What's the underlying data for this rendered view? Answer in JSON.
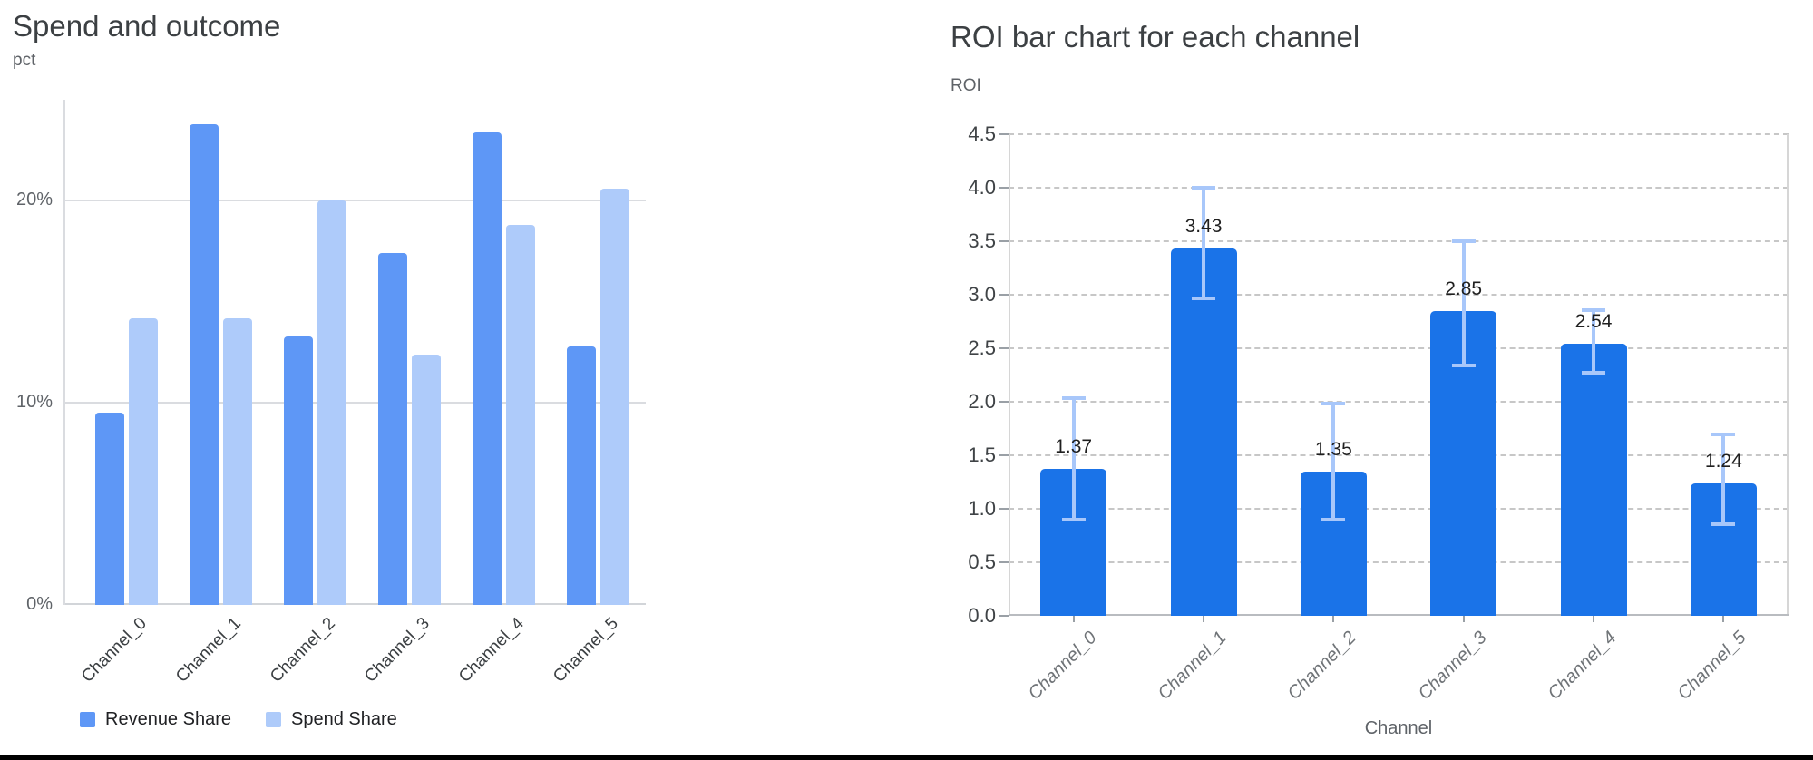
{
  "page": {
    "background": "#ffffff",
    "bottom_bar_color": "#000000"
  },
  "chart_data": [
    {
      "type": "bar",
      "title": "Spend and outcome",
      "ylabel": "pct",
      "xlabel": "",
      "categories": [
        "Channel_0",
        "Channel_1",
        "Channel_2",
        "Channel_3",
        "Channel_4",
        "Channel_5"
      ],
      "series": [
        {
          "name": "Revenue Share",
          "color": "#5e97f6",
          "values": [
            9.5,
            23.8,
            13.3,
            17.4,
            23.4,
            12.8
          ]
        },
        {
          "name": "Spend Share",
          "color": "#aecbfa",
          "values": [
            14.2,
            14.2,
            20.0,
            12.4,
            18.8,
            20.6
          ]
        }
      ],
      "y_ticks": [
        {
          "value": 0,
          "label": "0%"
        },
        {
          "value": 10,
          "label": "10%"
        },
        {
          "value": 20,
          "label": "20%"
        }
      ],
      "ylim": [
        0,
        25
      ],
      "grid": "solid-horizontal",
      "legend_position": "bottom-left"
    },
    {
      "type": "bar",
      "title": "ROI bar chart for each channel",
      "ylabel": "ROI",
      "xlabel": "Channel",
      "categories": [
        "Channel_0",
        "Channel_1",
        "Channel_2",
        "Channel_3",
        "Channel_4",
        "Channel_5"
      ],
      "values": [
        1.37,
        3.43,
        1.35,
        2.85,
        2.54,
        1.24
      ],
      "value_labels": [
        "1.37",
        "3.43",
        "1.35",
        "2.85",
        "2.54",
        "1.24"
      ],
      "error_low": [
        0.88,
        2.95,
        0.88,
        2.32,
        2.25,
        0.84
      ],
      "error_high": [
        2.05,
        4.02,
        2.0,
        3.52,
        2.87,
        1.71
      ],
      "bar_color": "#1a73e8",
      "error_bar_color": "#a8c7fa",
      "y_ticks": [
        {
          "value": 0.0,
          "label": "0.0"
        },
        {
          "value": 0.5,
          "label": "0.5"
        },
        {
          "value": 1.0,
          "label": "1.0"
        },
        {
          "value": 1.5,
          "label": "1.5"
        },
        {
          "value": 2.0,
          "label": "2.0"
        },
        {
          "value": 2.5,
          "label": "2.5"
        },
        {
          "value": 3.0,
          "label": "3.0"
        },
        {
          "value": 3.5,
          "label": "3.5"
        },
        {
          "value": 4.0,
          "label": "4.0"
        },
        {
          "value": 4.5,
          "label": "4.5"
        }
      ],
      "ylim": [
        0,
        4.5
      ],
      "grid": "dashed-horizontal",
      "legend_position": "none"
    }
  ]
}
